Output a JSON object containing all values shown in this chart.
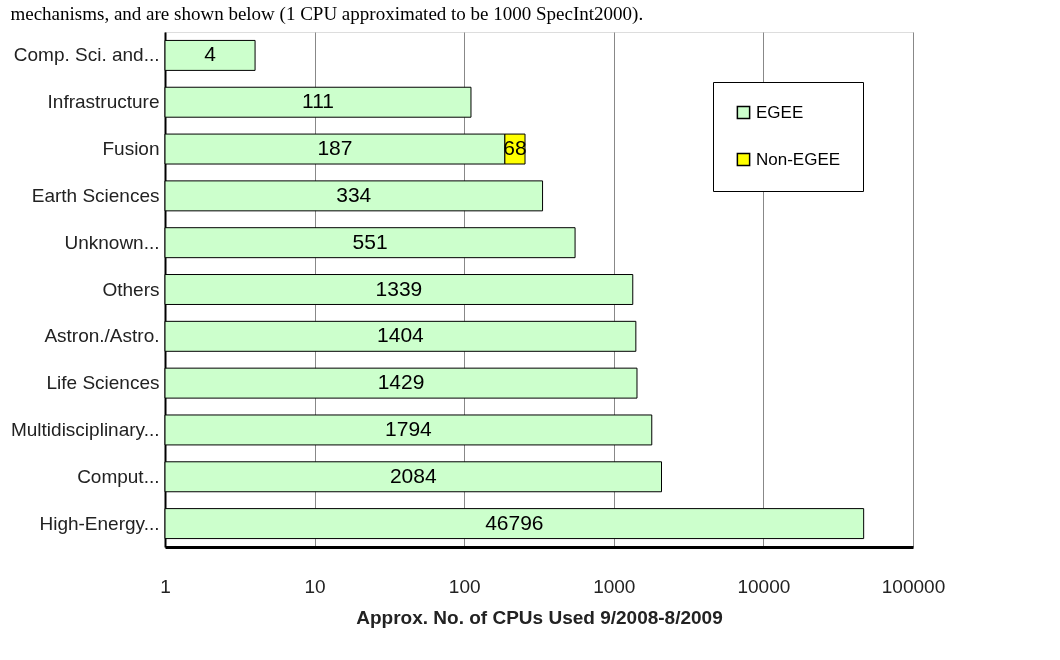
{
  "chart_data": {
    "type": "bar",
    "orientation": "horizontal",
    "stacked": true,
    "categories": [
      "Comp. Sci. and...",
      "Infrastructure",
      "Fusion",
      "Earth Sciences",
      "Unknown...",
      "Others",
      "Astron./Astro.",
      "Life Sciences",
      "Multidisciplinary...",
      "Comput...",
      "High-Energy..."
    ],
    "series": [
      {
        "name": "EGEE",
        "color": "#ccffcc",
        "values": [
          4,
          111,
          187,
          334,
          551,
          1339,
          1404,
          1429,
          1794,
          2084,
          46796
        ]
      },
      {
        "name": "Non-EGEE",
        "color": "#ffff00",
        "values": [
          null,
          null,
          68,
          null,
          null,
          null,
          null,
          null,
          null,
          null,
          null
        ]
      }
    ],
    "log": "x",
    "xlim": [
      1,
      100000
    ],
    "xticks": [
      1,
      10,
      100,
      1000,
      10000,
      100000
    ],
    "xlabel": "Approx. No. of CPUs Used 9/2008-8/2009",
    "grid": "x",
    "legend": "top right",
    "data_labels": true,
    "annotations": [
      "mechanisms, and are shown below (1 CPU approximated to be 1000 SpecInt2000)."
    ]
  }
}
